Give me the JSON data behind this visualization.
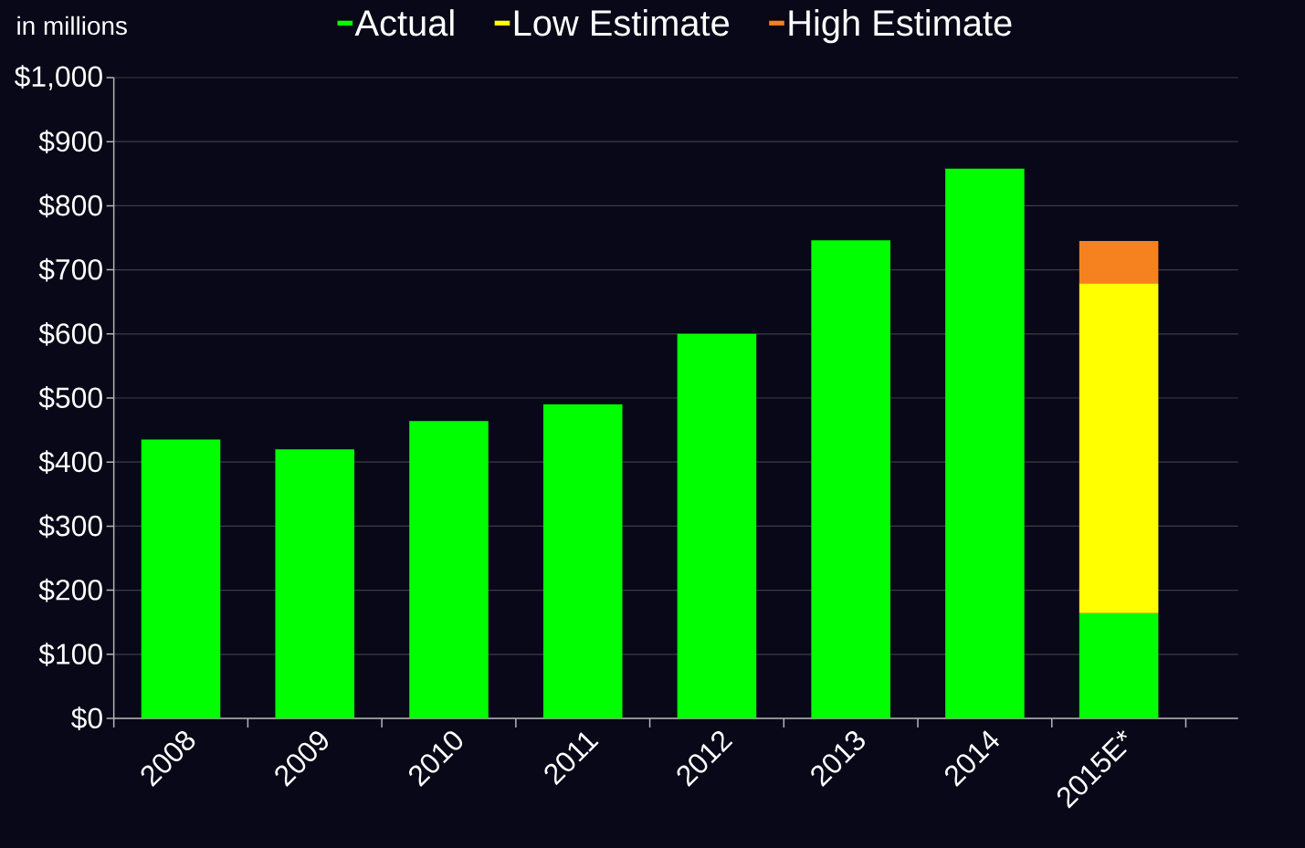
{
  "chart_data": {
    "type": "bar",
    "stacked": true,
    "categories": [
      "2008",
      "2009",
      "2010",
      "2011",
      "2012",
      "2013",
      "2014",
      "2015E*"
    ],
    "series": [
      {
        "name": "Actual",
        "color": "#00ff00",
        "values": [
          435,
          420,
          464,
          490,
          600,
          746,
          858,
          164
        ]
      },
      {
        "name": "Low Estimate",
        "color": "#ffff00",
        "values": [
          null,
          null,
          null,
          null,
          null,
          null,
          null,
          515
        ]
      },
      {
        "name": "High Estimate",
        "color": "#f5821f",
        "values": [
          null,
          null,
          null,
          null,
          null,
          null,
          null,
          66
        ]
      }
    ],
    "ylim": [
      0,
      1000
    ],
    "yticks": [
      {
        "value": 0,
        "label": "$0"
      },
      {
        "value": 100,
        "label": "$100"
      },
      {
        "value": 200,
        "label": "$200"
      },
      {
        "value": 300,
        "label": "$300"
      },
      {
        "value": 400,
        "label": "$400"
      },
      {
        "value": 500,
        "label": "$500"
      },
      {
        "value": 600,
        "label": "$600"
      },
      {
        "value": 700,
        "label": "$700"
      },
      {
        "value": 800,
        "label": "$800"
      },
      {
        "value": 900,
        "label": "$900"
      },
      {
        "value": 1000,
        "label": "$1,000"
      }
    ],
    "grid": "y",
    "legend": "top",
    "annotations": [
      "in millions"
    ]
  }
}
